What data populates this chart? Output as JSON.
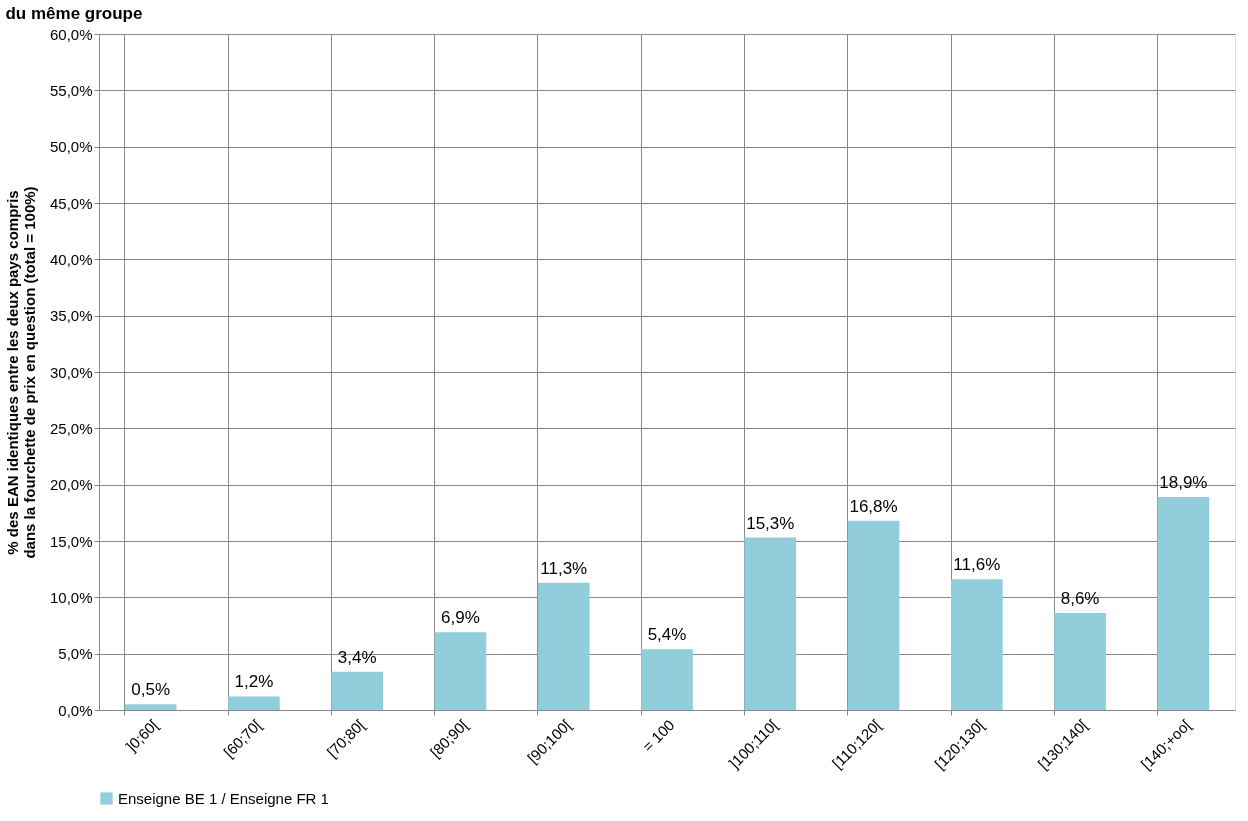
{
  "chart_data": {
    "type": "bar",
    "title": "du même groupe",
    "ylabel": "% des EAN identiques entre les deux pays compris\ndans la fourchette de prix en question (total = 100%)",
    "categories": [
      "]0;60[",
      "[60;70[",
      "[70;80[",
      "[80;90[",
      "[90;100[",
      "= 100",
      "]100;110[",
      "[110;120[",
      "[120;130[",
      "[130;140[",
      "[140;+oo["
    ],
    "series": [
      {
        "name": "Enseigne BE 1 / Enseigne FR 1",
        "color": "#92cddc",
        "values": [
          0.5,
          1.2,
          3.4,
          6.9,
          11.3,
          5.4,
          15.3,
          16.8,
          11.6,
          8.6,
          18.9
        ],
        "value_labels": [
          "0,5%",
          "1,2%",
          "3,4%",
          "6,9%",
          "11,3%",
          "5,4%",
          "15,3%",
          "16,8%",
          "11,6%",
          "8,6%",
          "18,9%"
        ]
      }
    ],
    "ylim": [
      0,
      60
    ],
    "yticks": [
      {
        "value": 0,
        "label": "0,0%"
      },
      {
        "value": 5,
        "label": "5,0%"
      },
      {
        "value": 10,
        "label": "10,0%"
      },
      {
        "value": 15,
        "label": "15,0%"
      },
      {
        "value": 20,
        "label": "20,0%"
      },
      {
        "value": 25,
        "label": "25,0%"
      },
      {
        "value": 30,
        "label": "30,0%"
      },
      {
        "value": 35,
        "label": "35,0%"
      },
      {
        "value": 40,
        "label": "40,0%"
      },
      {
        "value": 45,
        "label": "45,0%"
      },
      {
        "value": 50,
        "label": "50,0%"
      },
      {
        "value": 55,
        "label": "55,0%"
      },
      {
        "value": 60,
        "label": "60,0%"
      }
    ],
    "grid": true,
    "legend": "bottom"
  }
}
